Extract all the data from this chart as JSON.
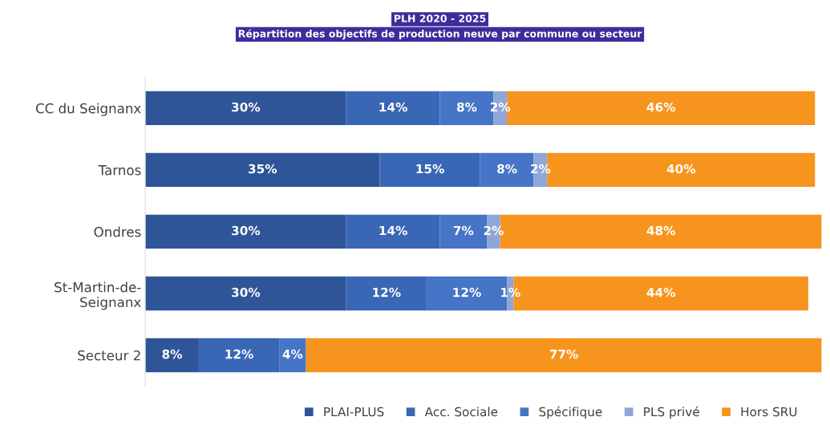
{
  "chart_data": {
    "type": "bar",
    "orientation": "horizontal",
    "stacked": true,
    "title": "PLH 2020 - 2025",
    "subtitle": "Répartition des objectifs de production neuve par commune ou secteur",
    "categories": [
      "CC du Seignanx",
      "Tarnos",
      "Ondres",
      "St-Martin-de-\nSeignanx",
      "Secteur 2"
    ],
    "series": [
      {
        "name": "PLAI-PLUS",
        "color": "#2e5597",
        "values": [
          30,
          35,
          30,
          30,
          8
        ],
        "value_labels": [
          "30%",
          "35%",
          "30%",
          "30%",
          "8%"
        ]
      },
      {
        "name": "Acc. Sociale",
        "color": "#3a67b5",
        "values": [
          14,
          15,
          14,
          12,
          12
        ],
        "value_labels": [
          "14%",
          "15%",
          "14%",
          "12%",
          "12%"
        ]
      },
      {
        "name": "Spécifique",
        "color": "#4674c6",
        "values": [
          8,
          8,
          7,
          12,
          4
        ],
        "value_labels": [
          "8%",
          "8%",
          "7%",
          "12%",
          "4%"
        ]
      },
      {
        "name": "PLS privé",
        "color": "#8fa6d8",
        "values": [
          2,
          2,
          2,
          1,
          null
        ],
        "value_labels": [
          "2%",
          "2%",
          "2%",
          "1%",
          null
        ]
      },
      {
        "name": "Hors SRU",
        "color": "#f7941d",
        "values": [
          46,
          40,
          48,
          44,
          77
        ],
        "value_labels": [
          "46%",
          "40%",
          "48%",
          "44%",
          "77%"
        ]
      }
    ],
    "xlim": [
      0,
      101
    ],
    "tick_labels": "y",
    "grid": false,
    "legend": "bottom"
  }
}
